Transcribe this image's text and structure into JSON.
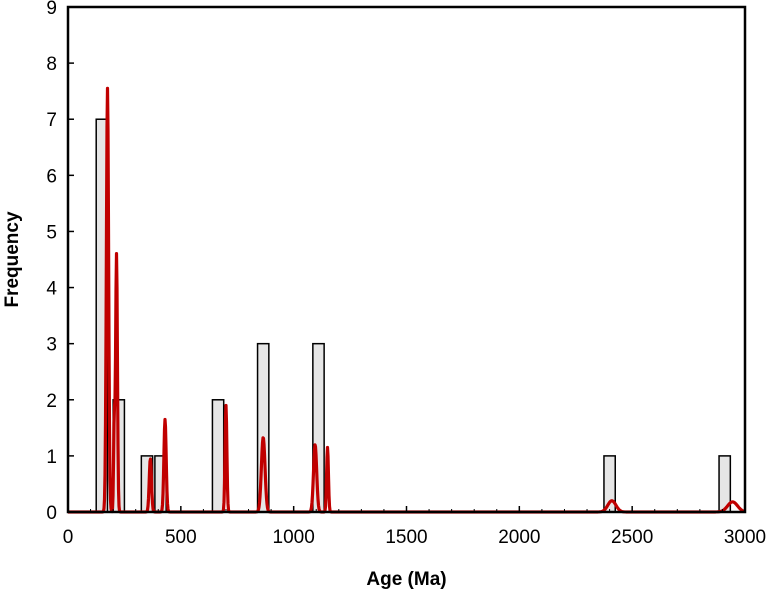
{
  "chart_data": {
    "type": "bar",
    "title": "",
    "xlabel": "Age (Ma)",
    "ylabel": "Frequency",
    "xlim": [
      0,
      3000
    ],
    "ylim": [
      0,
      9
    ],
    "x_ticks": [
      0,
      500,
      1000,
      1500,
      2000,
      2500,
      3000
    ],
    "y_ticks": [
      0,
      1,
      2,
      3,
      4,
      5,
      6,
      7,
      8,
      9
    ],
    "grid": false,
    "legend": "none",
    "colors": {
      "histogram_fill": "#e6e6e6",
      "histogram_edge": "#000000",
      "curve": "#c00000"
    },
    "series": [
      {
        "kind": "histogram",
        "bin_width": 50,
        "bins": [
          {
            "start": 125,
            "end": 175,
            "count": 7
          },
          {
            "start": 200,
            "end": 250,
            "count": 2
          },
          {
            "start": 325,
            "end": 375,
            "count": 1
          },
          {
            "start": 385,
            "end": 435,
            "count": 1
          },
          {
            "start": 640,
            "end": 690,
            "count": 2
          },
          {
            "start": 840,
            "end": 890,
            "count": 3
          },
          {
            "start": 1085,
            "end": 1135,
            "count": 3
          },
          {
            "start": 2375,
            "end": 2425,
            "count": 1
          },
          {
            "start": 2885,
            "end": 2935,
            "count": 1
          }
        ]
      },
      {
        "kind": "probability-density-curve",
        "peaks": [
          {
            "age": 175,
            "height": 7.55,
            "sigma": 5
          },
          {
            "age": 205,
            "height": 1.6,
            "sigma": 3
          },
          {
            "age": 215,
            "height": 4.6,
            "sigma": 4
          },
          {
            "age": 365,
            "height": 0.95,
            "sigma": 5
          },
          {
            "age": 430,
            "height": 1.65,
            "sigma": 5
          },
          {
            "age": 700,
            "height": 1.9,
            "sigma": 4
          },
          {
            "age": 865,
            "height": 1.33,
            "sigma": 8
          },
          {
            "age": 1095,
            "height": 1.2,
            "sigma": 7
          },
          {
            "age": 1150,
            "height": 1.15,
            "sigma": 4
          },
          {
            "age": 2410,
            "height": 0.2,
            "sigma": 18
          },
          {
            "age": 2945,
            "height": 0.18,
            "sigma": 22
          }
        ]
      }
    ]
  }
}
